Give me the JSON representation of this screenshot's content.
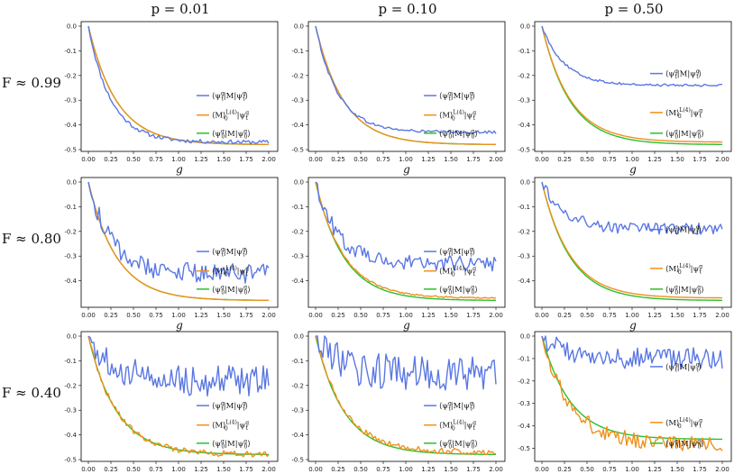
{
  "figure": {
    "column_titles": [
      "p = 0.01",
      "p = 0.10",
      "p = 0.50"
    ],
    "row_labels": [
      "F ≈ 0.99",
      "F ≈ 0.80",
      "F ≈ 0.40"
    ],
    "xlabel": "g",
    "colors": {
      "tomo": "#5b78e3",
      "mitig": "#f0901c",
      "exact": "#2cbf2c"
    }
  },
  "chart_data": [
    {
      "type": "line",
      "row": 0,
      "col": 0,
      "xlim": [
        0,
        2
      ],
      "ylim": [
        -0.5,
        0.0
      ],
      "xticks": [
        "0.00",
        "0.25",
        "0.50",
        "0.75",
        "1.00",
        "1.25",
        "1.50",
        "1.75",
        "2.00"
      ],
      "yticks": [
        "0.0",
        "-0.1",
        "-0.2",
        "-0.3",
        "-0.4",
        "-0.5"
      ],
      "legend_placement": "right",
      "series": [
        {
          "name": "⟨ψ_t^g|M|ψ_t^g⟩",
          "role": "tomo",
          "asymptote": -0.47,
          "noise": 0.005
        },
        {
          "name": "⟨M⟩_0^{L(4)}|ψ_t^g",
          "role": "mitig",
          "asymptote": -0.48,
          "noise": 0.0
        },
        {
          "name": "⟨ψ_0^g|M|ψ_0^g⟩",
          "role": "exact",
          "asymptote": -0.48,
          "noise": 0.0
        }
      ]
    },
    {
      "type": "line",
      "row": 0,
      "col": 1,
      "xlim": [
        0,
        2
      ],
      "ylim": [
        -0.5,
        0.0
      ],
      "xticks": [
        "0.00",
        "0.25",
        "0.50",
        "0.75",
        "1.00",
        "1.25",
        "1.50",
        "1.75",
        "2.00"
      ],
      "yticks": [
        "0.0",
        "-0.1",
        "-0.2",
        "-0.3",
        "-0.4",
        "-0.5"
      ],
      "legend_placement": "right",
      "series": [
        {
          "name": "⟨ψ_t^g|M|ψ_t^g⟩",
          "role": "tomo",
          "asymptote": -0.43,
          "noise": 0.004
        },
        {
          "name": "⟨M⟩_0^{L(4)}|ψ_t^g",
          "role": "mitig",
          "asymptote": -0.48,
          "noise": 0.0
        },
        {
          "name": "⟨ψ_0^g|M|ψ_0^g⟩",
          "role": "exact",
          "asymptote": -0.48,
          "noise": 0.0
        }
      ]
    },
    {
      "type": "line",
      "row": 0,
      "col": 2,
      "xlim": [
        0,
        2
      ],
      "ylim": [
        -0.5,
        0.0
      ],
      "xticks": [
        "0.00",
        "0.25",
        "0.50",
        "0.75",
        "1.00",
        "1.25",
        "1.50",
        "1.75",
        "2.00"
      ],
      "yticks": [
        "0.0",
        "-0.1",
        "-0.2",
        "-0.3",
        "-0.4",
        "-0.5"
      ],
      "legend_placement": "split",
      "series": [
        {
          "name": "⟨ψ_t^g|M|ψ_t^g⟩",
          "role": "tomo",
          "asymptote": -0.24,
          "noise": 0.003
        },
        {
          "name": "⟨M⟩_0^{L(4)}|ψ_t^g",
          "role": "mitig",
          "asymptote": -0.47,
          "noise": 0.0
        },
        {
          "name": "⟨ψ_0^g|M|ψ_0^g⟩",
          "role": "exact",
          "asymptote": -0.48,
          "noise": 0.0
        }
      ]
    },
    {
      "type": "line",
      "row": 1,
      "col": 0,
      "xlim": [
        0,
        2
      ],
      "ylim": [
        -0.5,
        0.0
      ],
      "xticks": [
        "0.00",
        "0.25",
        "0.50",
        "0.75",
        "1.00",
        "1.25",
        "1.50",
        "1.75",
        "2.00"
      ],
      "yticks": [
        "0.0",
        "-0.1",
        "-0.2",
        "-0.3",
        "-0.4"
      ],
      "legend_placement": "right",
      "series": [
        {
          "name": "⟨ψ_t^g|M|ψ_t^g⟩",
          "role": "tomo",
          "asymptote": -0.37,
          "noise": 0.025
        },
        {
          "name": "⟨M⟩_0^{L(4)}|ψ_t^g",
          "role": "mitig",
          "asymptote": -0.48,
          "noise": 0.0
        },
        {
          "name": "⟨ψ_0^g|M|ψ_0^g⟩",
          "role": "exact",
          "asymptote": -0.48,
          "noise": 0.0
        }
      ]
    },
    {
      "type": "line",
      "row": 1,
      "col": 1,
      "xlim": [
        0,
        2
      ],
      "ylim": [
        -0.5,
        0.0
      ],
      "xticks": [
        "0.00",
        "0.25",
        "0.50",
        "0.75",
        "1.00",
        "1.25",
        "1.50",
        "1.75",
        "2.00"
      ],
      "yticks": [
        "0.0",
        "-0.1",
        "-0.2",
        "-0.3",
        "-0.4"
      ],
      "legend_placement": "right",
      "series": [
        {
          "name": "⟨ψ_t^g|M|ψ_t^g⟩",
          "role": "tomo",
          "asymptote": -0.33,
          "noise": 0.02
        },
        {
          "name": "⟨M⟩_0^{L(4)}|ψ_t^g",
          "role": "mitig",
          "asymptote": -0.47,
          "noise": 0.003
        },
        {
          "name": "⟨ψ_0^g|M|ψ_0^g⟩",
          "role": "exact",
          "asymptote": -0.48,
          "noise": 0.0
        }
      ]
    },
    {
      "type": "line",
      "row": 1,
      "col": 2,
      "xlim": [
        0,
        2
      ],
      "ylim": [
        -0.5,
        0.0
      ],
      "xticks": [
        "0.00",
        "0.25",
        "0.50",
        "0.75",
        "1.00",
        "1.25",
        "1.50",
        "1.75",
        "2.00"
      ],
      "yticks": [
        "0.0",
        "-0.1",
        "-0.2",
        "-0.3",
        "-0.4"
      ],
      "legend_placement": "split",
      "series": [
        {
          "name": "⟨ψ_t^g|M|ψ_t^g⟩",
          "role": "tomo",
          "asymptote": -0.19,
          "noise": 0.015
        },
        {
          "name": "⟨M⟩_0^{L(4)}|ψ_t^g",
          "role": "mitig",
          "asymptote": -0.47,
          "noise": 0.0
        },
        {
          "name": "⟨ψ_0^g|M|ψ_0^g⟩",
          "role": "exact",
          "asymptote": -0.48,
          "noise": 0.0
        }
      ]
    },
    {
      "type": "line",
      "row": 2,
      "col": 0,
      "xlim": [
        0,
        2
      ],
      "ylim": [
        -0.5,
        0.0
      ],
      "xticks": [
        "0.00",
        "0.25",
        "0.50",
        "0.75",
        "1.00",
        "1.25",
        "1.50",
        "1.75",
        "2.00"
      ],
      "yticks": [
        "0.0",
        "-0.1",
        "-0.2",
        "-0.3",
        "-0.4",
        "-0.5"
      ],
      "legend_placement": "right",
      "series": [
        {
          "name": "⟨ψ_t^g|M|ψ_t^g⟩",
          "role": "tomo",
          "asymptote": -0.18,
          "noise": 0.04
        },
        {
          "name": "⟨M⟩_0^{L(4)}|ψ_t^g",
          "role": "mitig",
          "asymptote": -0.48,
          "noise": 0.012
        },
        {
          "name": "⟨ψ_0^g|M|ψ_0^g⟩",
          "role": "exact",
          "asymptote": -0.48,
          "noise": 0.0
        }
      ]
    },
    {
      "type": "line",
      "row": 2,
      "col": 1,
      "xlim": [
        0,
        2
      ],
      "ylim": [
        -0.5,
        0.0
      ],
      "xticks": [
        "0.00",
        "0.25",
        "0.50",
        "0.75",
        "1.00",
        "1.25",
        "1.50",
        "1.75",
        "2.00"
      ],
      "yticks": [
        "0.0",
        "-0.1",
        "-0.2",
        "-0.3",
        "-0.4",
        "-0.5"
      ],
      "legend_placement": "right",
      "series": [
        {
          "name": "⟨ψ_t^g|M|ψ_t^g⟩",
          "role": "tomo",
          "asymptote": -0.15,
          "noise": 0.045
        },
        {
          "name": "⟨M⟩_0^{L(4)}|ψ_t^g",
          "role": "mitig",
          "asymptote": -0.47,
          "noise": 0.012
        },
        {
          "name": "⟨ψ_0^g|M|ψ_0^g⟩",
          "role": "exact",
          "asymptote": -0.48,
          "noise": 0.0
        }
      ]
    },
    {
      "type": "line",
      "row": 2,
      "col": 2,
      "xlim": [
        0,
        2
      ],
      "ylim": [
        -0.55,
        0.0
      ],
      "xticks": [
        "0.00",
        "0.25",
        "0.50",
        "0.75",
        "1.00",
        "1.25",
        "1.50",
        "1.75",
        "2.00"
      ],
      "yticks": [
        "0.0",
        "-0.1",
        "-0.2",
        "-0.3",
        "-0.4",
        "-0.5"
      ],
      "legend_placement": "split",
      "series": [
        {
          "name": "⟨ψ_t^g|M|ψ_t^g⟩",
          "role": "tomo",
          "asymptote": -0.1,
          "noise": 0.03
        },
        {
          "name": "⟨M⟩_0^{L(4)}|ψ_t^g",
          "role": "mitig",
          "asymptote": -0.48,
          "noise": 0.035
        },
        {
          "name": "⟨ψ_0^g|M|ψ_0^g⟩",
          "role": "exact",
          "asymptote": -0.46,
          "noise": 0.0
        }
      ]
    }
  ]
}
